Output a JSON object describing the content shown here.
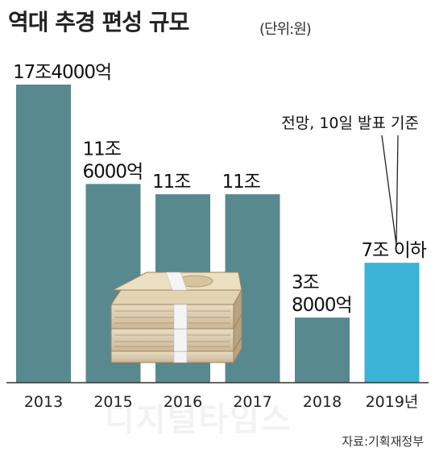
{
  "header": {
    "title": "역대 추경 편성 규모",
    "unit": "(단위:원)"
  },
  "source": "자료:기획재정부",
  "watermark": "디지털타임스",
  "annotation": "전망, 10일 발표 기준",
  "colors": {
    "bar": "#58898f",
    "highlight": "#3bb3d6",
    "axis": "#333333",
    "text": "#111111"
  },
  "chart_data": {
    "type": "bar",
    "categories": [
      "2013",
      "2015",
      "2016",
      "2017",
      "2018",
      "2019년"
    ],
    "values": [
      17.4,
      11.6,
      11,
      11,
      3.8,
      7
    ],
    "value_labels": [
      [
        "17조4000억"
      ],
      [
        "11조",
        "6000억"
      ],
      [
        "11조"
      ],
      [
        "11조"
      ],
      [
        "3조",
        "8000억"
      ],
      [
        "7조 이하"
      ]
    ],
    "highlight_index": 5,
    "value_unit": "조원"
  }
}
